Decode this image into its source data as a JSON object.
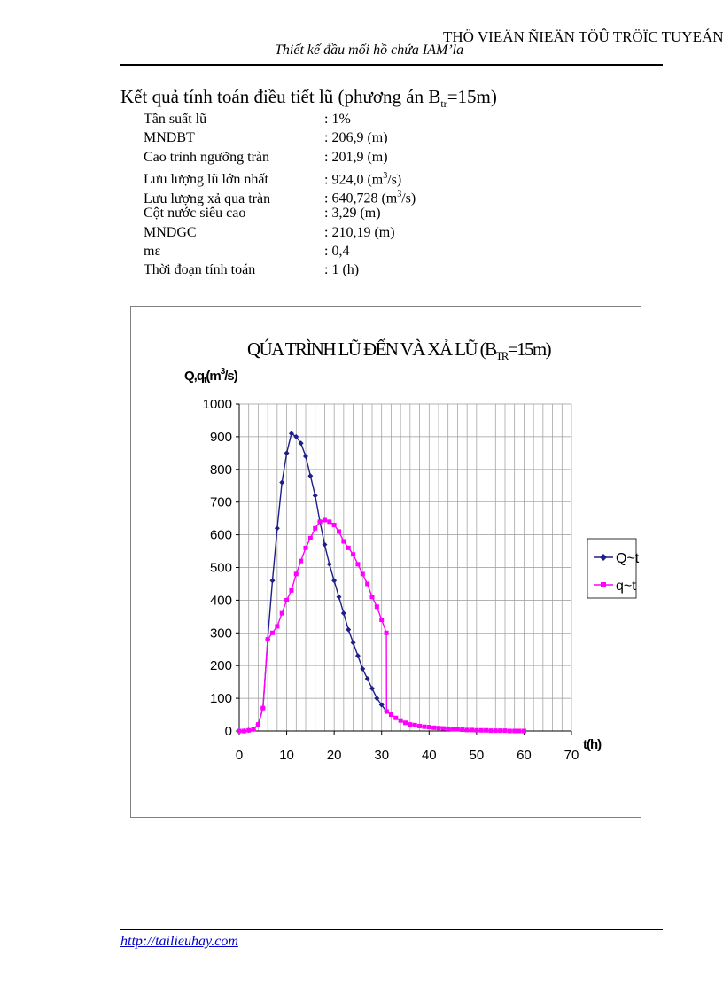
{
  "header": {
    "library_text": "THÖ VIEÄN ÑIEÄN TÖÛ TRÖÏC TUYEÁN",
    "subtitle": "Thiết kế đầu mối  hồ chứa IAM’la"
  },
  "heading": {
    "prefix": "Kết quả tính toán điều tiết lũ (phương án B",
    "subscript": "tr",
    "suffix": "=15m)"
  },
  "params": [
    {
      "label": "Tần suất lũ",
      "value": ": 1%"
    },
    {
      "label": "MNDBT",
      "value": ": 206,9 (m)"
    },
    {
      "label": "Cao trình ngưỡng tràn",
      "value": ": 201,9 (m)"
    },
    {
      "label": "Lưu lượng lũ lớn nhất",
      "value": ": 924,0 (m",
      "sup": "3",
      "tail": "/s)"
    },
    {
      "label": "Lưu lượng xả qua tràn",
      "value": ": 640,728 (m",
      "sup": "3",
      "tail": "/s)"
    },
    {
      "label": "Cột nước siêu cao",
      "value": ": 3,29 (m)"
    },
    {
      "label": "MNDGC",
      "value": ": 210,19 (m)"
    },
    {
      "label": "mε",
      "value": ": 0,4"
    },
    {
      "label": "Thời đoạn tính toán",
      "value": ": 1 (h)"
    }
  ],
  "chart_data": {
    "type": "line",
    "title_prefix": "QÚA TRÌNH LŨ ĐẾN VÀ XẢ LŨ (B",
    "title_sub": "TR",
    "title_suffix": "=15m)",
    "ylabel": "Q,q",
    "ylabel_sub": "t",
    "ylabel_unit_prefix": "(m",
    "ylabel_unit_sup": "3",
    "ylabel_unit_suffix": "/s)",
    "xlabel": "t(h)",
    "xlim": [
      0,
      70
    ],
    "ylim": [
      0,
      1000
    ],
    "xticks": [
      0,
      10,
      20,
      30,
      40,
      50,
      60,
      70
    ],
    "yticks": [
      0,
      100,
      200,
      300,
      400,
      500,
      600,
      700,
      800,
      900,
      1000
    ],
    "grid": true,
    "legend_position": "right",
    "series": [
      {
        "name": "Q~t",
        "color": "#1f1f8a",
        "marker": "diamond",
        "x": [
          0,
          1,
          2,
          3,
          4,
          5,
          6,
          7,
          8,
          9,
          10,
          11,
          12,
          13,
          14,
          15,
          16,
          17,
          18,
          19,
          20,
          21,
          22,
          23,
          24,
          25,
          26,
          27,
          28,
          29,
          30,
          31
        ],
        "y": [
          0,
          0,
          2,
          5,
          20,
          70,
          280,
          460,
          620,
          760,
          850,
          910,
          900,
          880,
          840,
          780,
          720,
          640,
          570,
          510,
          460,
          410,
          360,
          310,
          270,
          230,
          190,
          160,
          130,
          100,
          80,
          60
        ]
      },
      {
        "name": "q~t",
        "color": "#ff00ff",
        "marker": "square",
        "x": [
          0,
          1,
          2,
          3,
          4,
          5,
          6,
          7,
          8,
          9,
          10,
          11,
          12,
          13,
          14,
          15,
          16,
          17,
          18,
          19,
          20,
          21,
          22,
          23,
          24,
          25,
          26,
          27,
          28,
          29,
          30,
          31,
          31.05,
          32,
          33,
          34,
          35,
          36,
          37,
          38,
          39,
          40,
          41,
          42,
          43,
          44,
          45,
          46,
          47,
          48,
          49,
          50,
          51,
          52,
          53,
          54,
          55,
          56,
          57,
          58,
          59,
          60
        ],
        "y": [
          0,
          0,
          2,
          5,
          20,
          70,
          280,
          300,
          320,
          360,
          400,
          430,
          480,
          520,
          560,
          590,
          620,
          640,
          645,
          640,
          630,
          610,
          580,
          560,
          540,
          510,
          480,
          450,
          410,
          380,
          340,
          300,
          60,
          50,
          40,
          32,
          25,
          20,
          18,
          15,
          13,
          12,
          10,
          9,
          8,
          7,
          6,
          5,
          4,
          3,
          3,
          2,
          2,
          2,
          1,
          1,
          1,
          1,
          0,
          0,
          0,
          0
        ]
      }
    ]
  },
  "footer": {
    "link_text": "http://tailieuhay.com"
  }
}
